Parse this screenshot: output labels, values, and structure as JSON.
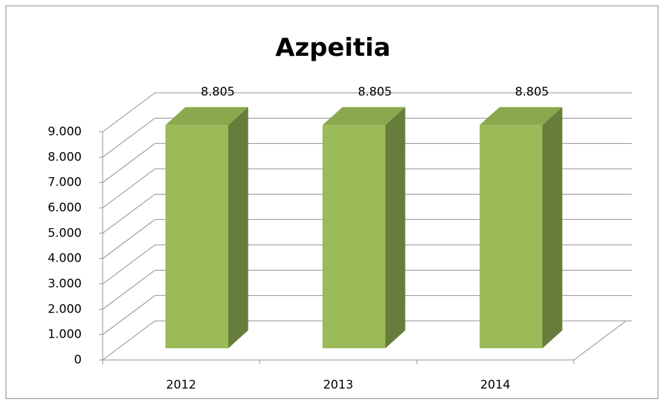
{
  "chart_data": {
    "type": "bar3d",
    "title": "Azpeitia",
    "categories": [
      "2012",
      "2013",
      "2014"
    ],
    "values": [
      8805,
      8805,
      8805
    ],
    "value_labels": [
      "8.805",
      "8.805",
      "8.805"
    ],
    "color": "#9bbb59",
    "ylim": [
      0,
      9000
    ],
    "yticks": [
      0,
      {
        "value": 1000,
        "label": "1.000"
      },
      {
        "value": 2000,
        "label": "2.000"
      },
      {
        "value": 3000,
        "label": "3.000"
      },
      {
        "value": 4000,
        "label": "4.000"
      },
      {
        "value": 5000,
        "label": "5.000"
      },
      {
        "value": 6000,
        "label": "6.000"
      },
      {
        "value": 7000,
        "label": "7.000"
      },
      {
        "value": 8000,
        "label": "8.000"
      },
      {
        "value": 9000,
        "label": "9.000"
      }
    ],
    "grid": true
  }
}
